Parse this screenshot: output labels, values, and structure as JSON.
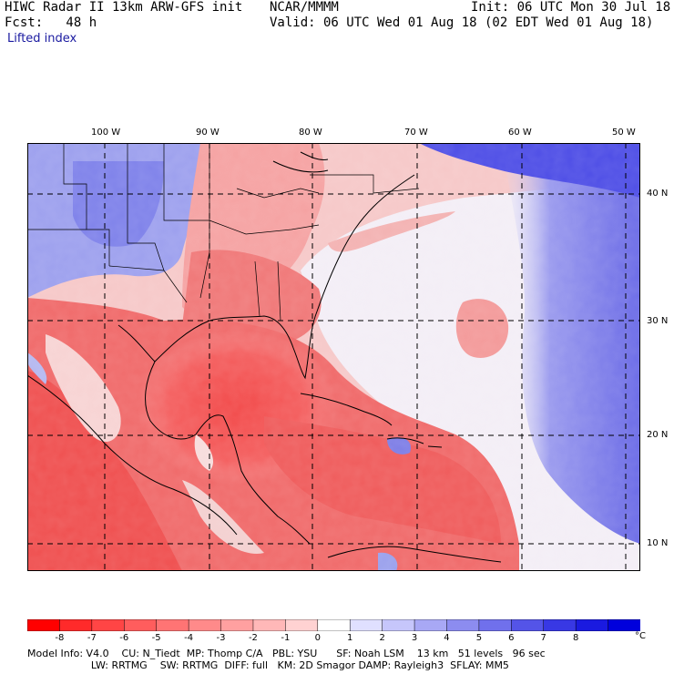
{
  "header": {
    "model": "HIWC Radar II 13km ARW-GFS init",
    "org": "NCAR/MMMM",
    "init": "Init: 06 UTC Mon 30 Jul 18",
    "fcst": "Fcst:   48 h",
    "valid": "Valid: 06 UTC Wed 01 Aug 18 (02 EDT Wed 01 Aug 18)",
    "field": "Lifted index"
  },
  "axes": {
    "lon_labels": [
      "100 W",
      "90 W",
      "80 W",
      "70 W",
      "60 W",
      "50 W"
    ],
    "lat_labels": [
      "40 N",
      "30 N",
      "20 N",
      "10 N"
    ]
  },
  "colorbar": {
    "unit": "°C",
    "ticks": [
      "-8",
      "-7",
      "-6",
      "-5",
      "-4",
      "-3",
      "-2",
      "-1",
      "0",
      "1",
      "2",
      "3",
      "4",
      "5",
      "6",
      "7",
      "8"
    ],
    "colors_neg": [
      "#ff0000",
      "#ff2a2a",
      "#ff4545",
      "#ff5d5d",
      "#ff7474",
      "#ff8a8a",
      "#ffa0a0",
      "#ffb8b8",
      "#ffd2d2"
    ],
    "color_zero": "#ffffff",
    "colors_pos": [
      "#e0e0ff",
      "#c6c6fb",
      "#a8a8f5",
      "#8c8cf0",
      "#7070ec",
      "#5454e8",
      "#3838e4",
      "#1a1ae0",
      "#0000dc"
    ]
  },
  "footer": {
    "line1": "Model Info: V4.0    CU: N_Tiedt  MP: Thomp C/A   PBL: YSU      SF: Noah LSM    13 km   51 levels   96 sec",
    "line2": "                    LW: RRTMG    SW: RRTMG  DIFF: full   KM: 2D Smagor DAMP: Rayleigh3  SFLAY: MM5"
  }
}
